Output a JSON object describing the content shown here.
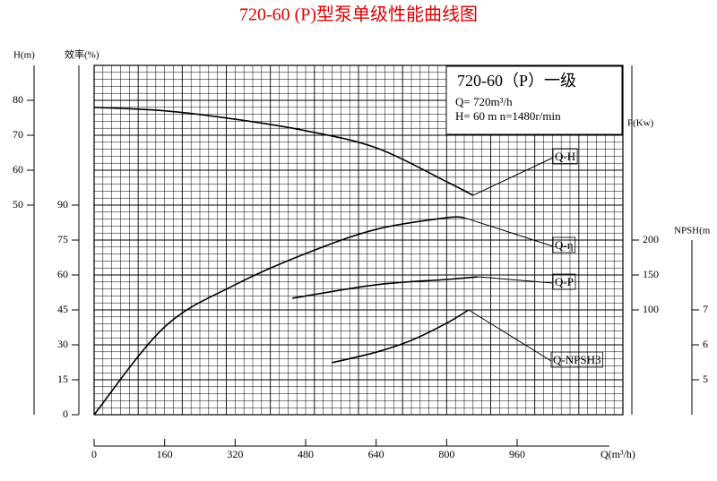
{
  "chart_data": {
    "type": "line",
    "title": "720-60 (P)型泵单级性能曲线图",
    "xlabel": "Q(m³/h)",
    "xlim": [
      0,
      1200
    ],
    "xticks": [
      0,
      160,
      320,
      480,
      640,
      800,
      960
    ],
    "axes": [
      {
        "label": "H(m)",
        "lim": [
          -10,
          90
        ],
        "ticks": [
          50,
          60,
          70,
          80
        ]
      },
      {
        "label": "效率(%)",
        "lim": [
          0,
          150
        ],
        "ticks": [
          0,
          15,
          30,
          45,
          60,
          75,
          90
        ]
      },
      {
        "label": "P(Kw)",
        "lim": [
          -50,
          450
        ],
        "ticks": [
          100,
          150,
          200
        ]
      },
      {
        "label": "NPSH(m",
        "lim": [
          4,
          14
        ],
        "ticks": [
          5,
          6,
          7
        ]
      }
    ],
    "info": [
      "720-60（P）一级",
      "Q= 720m³/h",
      "H= 60 m   n=1480r/min"
    ],
    "series": [
      {
        "name": "Q-H",
        "axis": 0,
        "color": "#000",
        "x": [
          0,
          160,
          320,
          480,
          640,
          800,
          860
        ],
        "values": [
          78,
          77,
          74.6,
          71.3,
          66.4,
          56.7,
          52.8
        ]
      },
      {
        "name": "Q-η",
        "axis": 1,
        "color": "#000",
        "x": [
          0,
          160,
          320,
          480,
          640,
          800,
          840
        ],
        "values": [
          0,
          37.7,
          55.8,
          69.2,
          79.6,
          84.6,
          84.6
        ]
      },
      {
        "name": "Q-P",
        "axis": 2,
        "color": "#000",
        "x": [
          450,
          640,
          800,
          870
        ],
        "values": [
          116.7,
          136,
          143.6,
          147.4
        ]
      },
      {
        "name": "Q-NPSH3",
        "axis": 3,
        "color": "#000",
        "x": [
          540,
          640,
          720,
          800,
          850
        ],
        "values": [
          5.49,
          5.79,
          6.13,
          6.62,
          7.0
        ]
      }
    ]
  }
}
